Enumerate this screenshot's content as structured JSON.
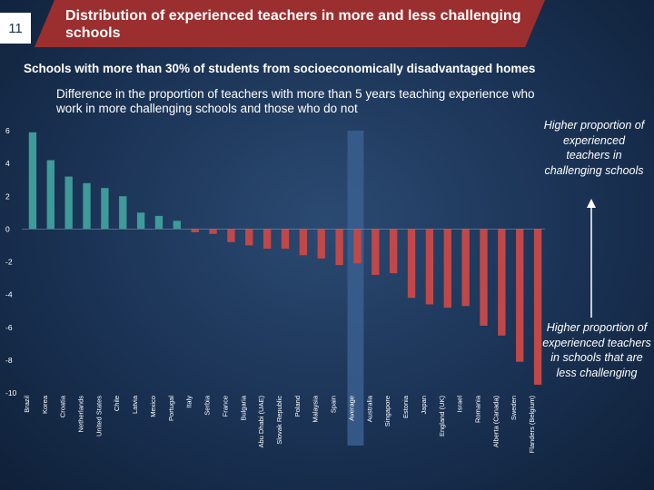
{
  "slide": {
    "number": "11"
  },
  "header": {
    "title": "Distribution of experienced teachers in more and less challenging schools"
  },
  "subtitle": "Schools with more than 30% of students from socioeconomically disadvantaged homes",
  "annotations": {
    "top": "Higher proportion of  experienced teachers in challenging schools",
    "bottom": "Higher proportion of experienced teachers in schools that are less challenging"
  },
  "colors": {
    "positive": "#3f9a9a",
    "negative": "#c04848",
    "highlight": "#3a5f8f",
    "arrow": "#ffffff"
  },
  "chart_data": {
    "type": "bar",
    "title": "Difference in the proportion of teachers with more than 5 years teaching experience who work in more challenging schools and those who do not",
    "xlabel": "",
    "ylabel": "",
    "ylim": [
      -10,
      6
    ],
    "yticks": [
      -10,
      -8,
      -6,
      -4,
      -2,
      0,
      2,
      4,
      6
    ],
    "highlight_category": "Average",
    "categories": [
      "Brazil",
      "Korea",
      "Croatia",
      "Netherlands",
      "United States",
      "Chile",
      "Latvia",
      "Mexico",
      "Portugal",
      "Italy",
      "Serbia",
      "France",
      "Bulgaria",
      "Abu Dhabi (UAE)",
      "Slovak Republic",
      "Poland",
      "Malaysia",
      "Spain",
      "Average",
      "Australia",
      "Singapore",
      "Estonia",
      "Japan",
      "England (UK)",
      "Israel",
      "Romania",
      "Alberta (Canada)",
      "Sweden",
      "Flanders (Belgium)"
    ],
    "values": [
      5.9,
      4.2,
      3.2,
      2.8,
      2.5,
      2.0,
      1.0,
      0.8,
      0.5,
      -0.2,
      -0.3,
      -0.8,
      -1.0,
      -1.2,
      -1.2,
      -1.6,
      -1.8,
      -2.2,
      -2.1,
      -2.8,
      -2.7,
      -4.2,
      -4.6,
      -4.8,
      -4.7,
      -5.9,
      -6.5,
      -8.1,
      -9.5
    ]
  }
}
